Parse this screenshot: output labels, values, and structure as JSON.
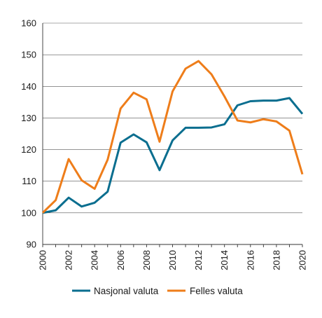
{
  "chart_data": {
    "type": "line",
    "x": [
      2000,
      2001,
      2002,
      2003,
      2004,
      2005,
      2006,
      2007,
      2008,
      2009,
      2010,
      2011,
      2012,
      2013,
      2014,
      2015,
      2016,
      2017,
      2018,
      2019,
      2020
    ],
    "series": [
      {
        "name": "Nasjonal valuta",
        "color": "#0a6e8f",
        "values": [
          100,
          100.8,
          104.8,
          102,
          103.2,
          106.7,
          122.2,
          124.8,
          122.3,
          113.5,
          122.9,
          126.9,
          126.9,
          127,
          128,
          134,
          135.3,
          135.5,
          135.5,
          136.3,
          131.3
        ]
      },
      {
        "name": "Felles valuta",
        "color": "#ee7d1a",
        "values": [
          100,
          104,
          117,
          110.3,
          107.6,
          116.8,
          133,
          138,
          135.9,
          122.5,
          138.4,
          145.6,
          148,
          143.8,
          136.8,
          129.2,
          128.6,
          129.6,
          128.9,
          126,
          112.2
        ]
      }
    ],
    "xticks": [
      "2000",
      "2002",
      "2004",
      "2006",
      "2008",
      "2010",
      "2012",
      "2014",
      "2016",
      "2018",
      "2020"
    ],
    "yticks": [
      "90",
      "100",
      "110",
      "120",
      "130",
      "140",
      "150",
      "160"
    ],
    "xlim": [
      2000,
      2020
    ],
    "ylim": [
      90,
      160
    ],
    "grid": "horizontal",
    "legend": "bottom"
  }
}
